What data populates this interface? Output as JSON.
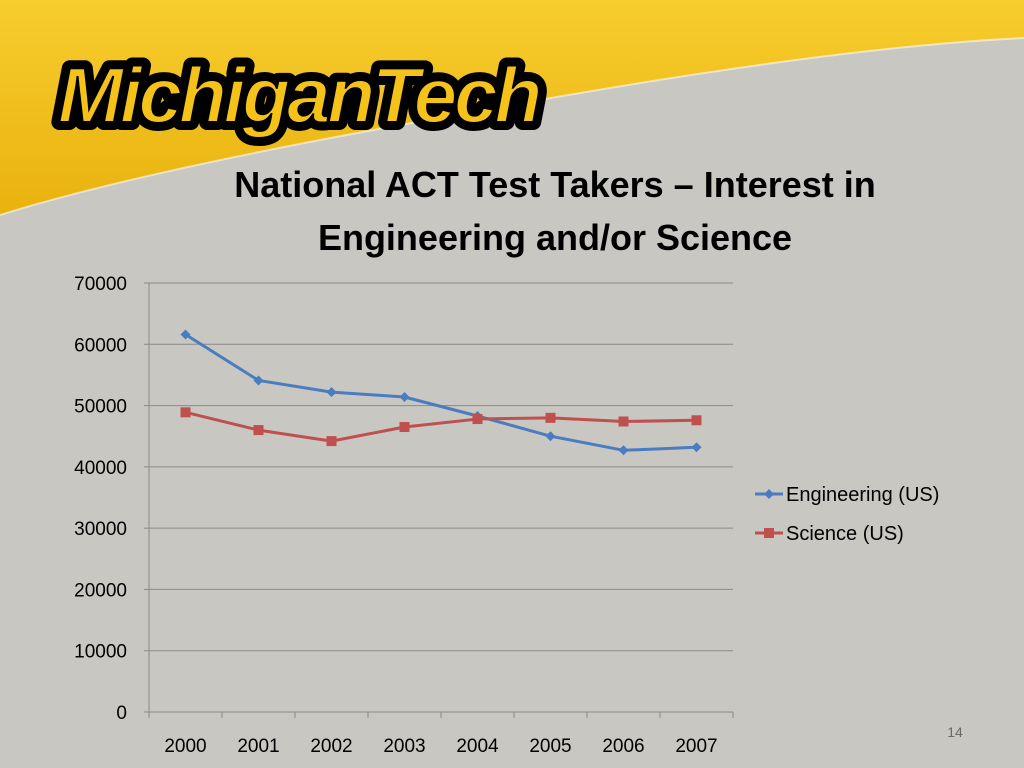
{
  "slide": {
    "logo_text": "MichiganTech",
    "title_line1": "National ACT Test Takers – Interest in",
    "title_line2": "Engineering and/or Science",
    "page_number": "14",
    "colors": {
      "banner_gold": "#f5c21a",
      "background": "#c8c7c2"
    }
  },
  "chart_data": {
    "type": "line",
    "title": "National ACT Test Takers – Interest in Engineering and/or Science",
    "xlabel": "",
    "ylabel": "",
    "categories": [
      "2000",
      "2001",
      "2002",
      "2003",
      "2004",
      "2005",
      "2006",
      "2007"
    ],
    "ylim": [
      0,
      70000
    ],
    "yticks": [
      0,
      10000,
      20000,
      30000,
      40000,
      50000,
      60000,
      70000
    ],
    "grid": true,
    "legend_position": "right",
    "series": [
      {
        "name": "Engineering (US)",
        "color": "#4a7dbf",
        "marker": "diamond",
        "values": [
          61600,
          54100,
          52200,
          51400,
          48300,
          45000,
          42700,
          43200
        ]
      },
      {
        "name": "Science (US)",
        "color": "#c0504d",
        "marker": "square",
        "values": [
          48900,
          46000,
          44200,
          46500,
          47800,
          48000,
          47400,
          47600
        ]
      }
    ]
  }
}
